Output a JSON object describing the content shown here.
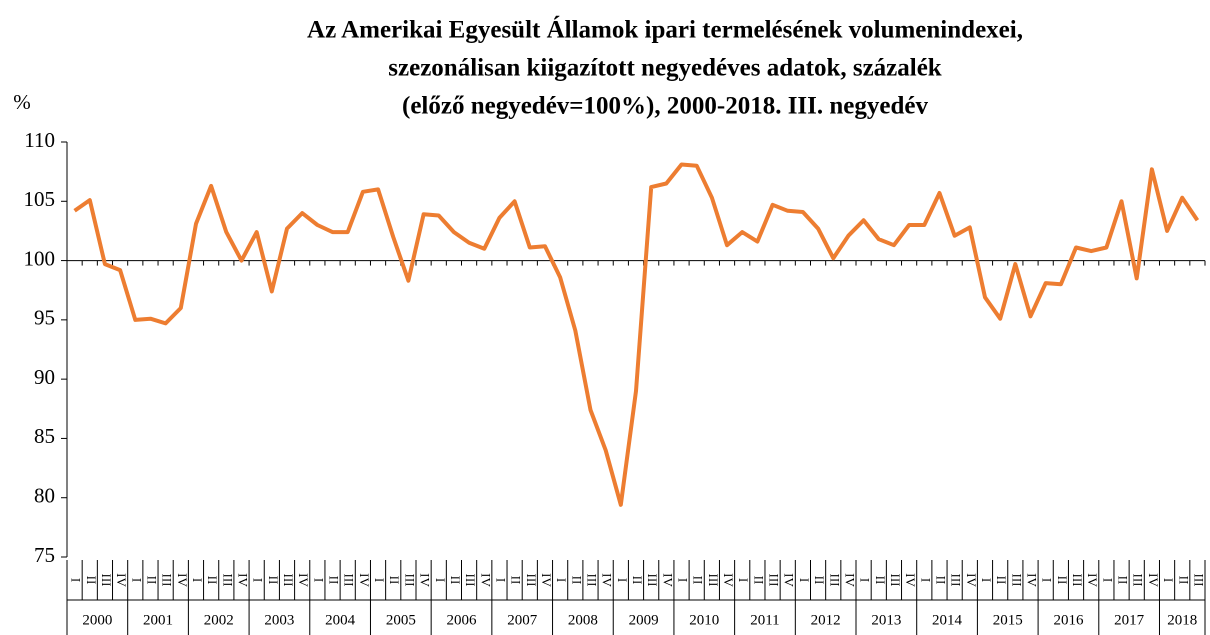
{
  "chart_data": {
    "type": "line",
    "title": [
      "Az Amerikai Egyesült Államok ipari termelésének volumenindexei,",
      "szezonálisan kiigazított negyedéves adatok, százalék",
      "(előző negyedév=100%), 2000-2018. III. negyedév"
    ],
    "y_unit": "%",
    "categories": [
      "I",
      "II",
      "III",
      "IV",
      "I",
      "II",
      "III",
      "IV",
      "I",
      "II",
      "III",
      "IV",
      "I",
      "II",
      "III",
      "IV",
      "I",
      "II",
      "III",
      "IV",
      "I",
      "II",
      "III",
      "IV",
      "I",
      "II",
      "III",
      "IV",
      "I",
      "II",
      "III",
      "IV",
      "I",
      "II",
      "III",
      "IV",
      "I",
      "II",
      "III",
      "IV",
      "I",
      "II",
      "III",
      "IV",
      "I",
      "II",
      "III",
      "IV",
      "I",
      "II",
      "III",
      "IV",
      "I",
      "II",
      "III",
      "IV",
      "I",
      "II",
      "III",
      "IV",
      "I",
      "II",
      "III",
      "IV",
      "I",
      "II",
      "III",
      "IV",
      "I",
      "II",
      "III",
      "IV",
      "I",
      "II",
      "III"
    ],
    "years": [
      "2000",
      "2001",
      "2002",
      "2003",
      "2004",
      "2005",
      "2006",
      "2007",
      "2008",
      "2009",
      "2010",
      "2011",
      "2012",
      "2013",
      "2014",
      "2015",
      "2016",
      "2017",
      "2018"
    ],
    "series": [
      {
        "color": "#ed7d31",
        "values": [
          104.2,
          105.1,
          99.7,
          99.2,
          95.0,
          95.1,
          94.7,
          96.0,
          103.1,
          106.3,
          102.4,
          100.0,
          102.4,
          97.4,
          102.7,
          104.0,
          103.0,
          102.4,
          102.4,
          105.8,
          106.0,
          102.0,
          98.3,
          103.9,
          103.8,
          102.4,
          101.5,
          101.0,
          103.6,
          105.0,
          101.1,
          101.2,
          98.6,
          94.1,
          87.4,
          84.0,
          79.4,
          89.0,
          106.2,
          106.5,
          108.1,
          108.0,
          105.3,
          101.3,
          102.4,
          101.6,
          104.7,
          104.2,
          104.1,
          102.7,
          100.2,
          102.1,
          103.4,
          101.8,
          101.3,
          103.0,
          103.0,
          105.7,
          102.1,
          102.8,
          96.9,
          95.1,
          99.7,
          95.3,
          98.1,
          98.0,
          101.1,
          100.8,
          101.1,
          105.0,
          98.5,
          107.7,
          102.5,
          105.3,
          103.4
        ]
      }
    ],
    "ylim": [
      75,
      110
    ],
    "yticks": [
      75,
      80,
      85,
      90,
      95,
      100,
      105,
      110
    ],
    "x_axis_at": 100
  }
}
